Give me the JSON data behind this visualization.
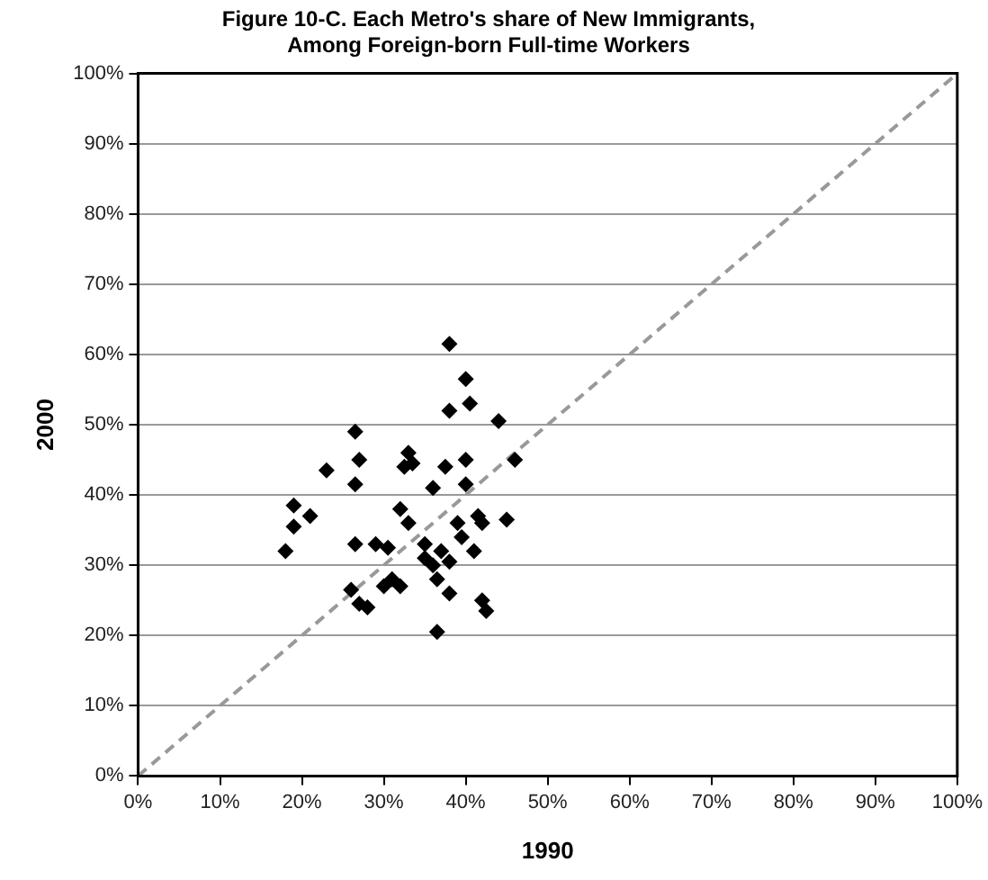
{
  "chart_data": {
    "type": "scatter",
    "title": "Figure 10-C. Each Metro's share of New Immigrants,\nAmong Foreign-born Full-time Workers",
    "xlabel": "1990",
    "ylabel": "2000",
    "xlim": [
      0,
      100
    ],
    "ylim": [
      0,
      100
    ],
    "xticks": [
      {
        "value": 0,
        "label": "0%"
      },
      {
        "value": 10,
        "label": "10%"
      },
      {
        "value": 20,
        "label": "20%"
      },
      {
        "value": 30,
        "label": "30%"
      },
      {
        "value": 40,
        "label": "40%"
      },
      {
        "value": 50,
        "label": "50%"
      },
      {
        "value": 60,
        "label": "60%"
      },
      {
        "value": 70,
        "label": "70%"
      },
      {
        "value": 80,
        "label": "80%"
      },
      {
        "value": 90,
        "label": "90%"
      },
      {
        "value": 100,
        "label": "100%"
      }
    ],
    "yticks": [
      {
        "value": 0,
        "label": "0%"
      },
      {
        "value": 10,
        "label": "10%"
      },
      {
        "value": 20,
        "label": "20%"
      },
      {
        "value": 30,
        "label": "30%"
      },
      {
        "value": 40,
        "label": "40%"
      },
      {
        "value": 50,
        "label": "50%"
      },
      {
        "value": 60,
        "label": "60%"
      },
      {
        "value": 70,
        "label": "70%"
      },
      {
        "value": 80,
        "label": "80%"
      },
      {
        "value": 90,
        "label": "90%"
      },
      {
        "value": 100,
        "label": "100%"
      }
    ],
    "grid": "y",
    "legend": false,
    "marker": "diamond",
    "series": [
      {
        "type": "scatter",
        "color": "#000000",
        "x": [
          18,
          19,
          19,
          21,
          23,
          26,
          26.5,
          26.5,
          26.5,
          27,
          27,
          28,
          29,
          30,
          30.5,
          31,
          32,
          32,
          32.5,
          33,
          33,
          33.5,
          35,
          35,
          36,
          36,
          36.5,
          36.5,
          37,
          37.5,
          38,
          38,
          38,
          38,
          39,
          39.5,
          40,
          40,
          40,
          40.5,
          41,
          41.5,
          42,
          42.5,
          42,
          44,
          45,
          46
        ],
        "values": [
          32,
          38.5,
          35.5,
          37,
          43.5,
          26.5,
          49,
          41.5,
          33,
          45,
          24.5,
          24,
          33,
          27,
          32.5,
          28,
          27,
          38,
          44,
          36,
          46,
          44.5,
          33,
          31,
          41,
          30,
          28,
          20.5,
          32,
          44,
          61.5,
          52,
          26,
          30.5,
          36,
          34,
          56.5,
          45,
          41.5,
          53,
          32,
          37,
          25,
          23.5,
          36,
          50.5,
          36.5,
          45
        ]
      },
      {
        "type": "line",
        "color": "#999999",
        "line_style": "dashed",
        "marker": "none",
        "x": [
          0,
          100
        ],
        "values": [
          0,
          100
        ]
      }
    ]
  }
}
